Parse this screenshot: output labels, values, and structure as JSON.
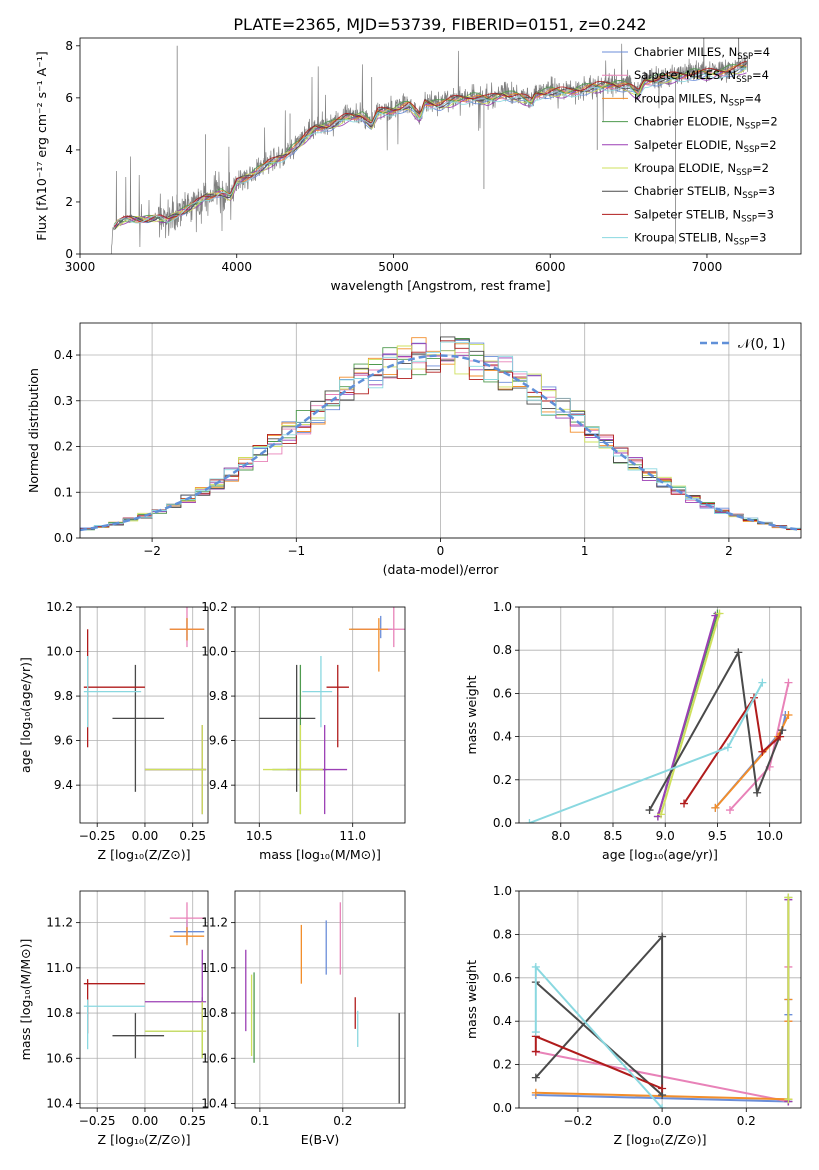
{
  "title": "PLATE=2365, MJD=53739, FIBERID=0151, z=0.242",
  "series": [
    {
      "key": "chab_miles",
      "label": "Chabrier MILES, N",
      "sub": "SSP",
      "suffix": "=4",
      "color": "#6b8ed9"
    },
    {
      "key": "salp_miles",
      "label": "Salpeter MILES, N",
      "sub": "SSP",
      "suffix": "=4",
      "color": "#e882b8"
    },
    {
      "key": "krou_miles",
      "label": "Kroupa MILES, N",
      "sub": "SSP",
      "suffix": "=4",
      "color": "#f28e2b"
    },
    {
      "key": "chab_elodie",
      "label": "Chabrier ELODIE, N",
      "sub": "SSP",
      "suffix": "=2",
      "color": "#4e9a4e"
    },
    {
      "key": "salp_elodie",
      "label": "Salpeter ELODIE, N",
      "sub": "SSP",
      "suffix": "=2",
      "color": "#9b3fb5"
    },
    {
      "key": "krou_elodie",
      "label": "Kroupa ELODIE, N",
      "sub": "SSP",
      "suffix": "=2",
      "color": "#cfe05c"
    },
    {
      "key": "chab_stelib",
      "label": "Chabrier STELIB, N",
      "sub": "SSP",
      "suffix": "=3",
      "color": "#4a4a4a"
    },
    {
      "key": "salp_stelib",
      "label": "Salpeter STELIB, N",
      "sub": "SSP",
      "suffix": "=3",
      "color": "#b01c1c"
    },
    {
      "key": "krou_stelib",
      "label": "Kroupa STELIB, N",
      "sub": "SSP",
      "suffix": "=3",
      "color": "#8ad8e0"
    }
  ],
  "chart_data": [
    {
      "id": "spectrum",
      "type": "line",
      "xlabel": "wavelength [Angstrom, rest frame]",
      "ylabel": "Flux [fλ10⁻¹⁷ erg cm⁻² s⁻¹ A⁻¹]",
      "xlim": [
        3000,
        7600
      ],
      "ylim": [
        0,
        8.3
      ],
      "xticks": [
        3000,
        4000,
        5000,
        6000,
        7000
      ],
      "yticks": [
        0,
        2,
        4,
        6,
        8
      ],
      "grid": false,
      "legend": "top-right",
      "continuum": [
        [
          3200,
          0
        ],
        [
          3210,
          1.0
        ],
        [
          3250,
          1.25
        ],
        [
          3300,
          1.35
        ],
        [
          3400,
          1.35
        ],
        [
          3500,
          1.4
        ],
        [
          3560,
          1.3
        ],
        [
          3600,
          1.5
        ],
        [
          3700,
          1.8
        ],
        [
          3800,
          2.2
        ],
        [
          3900,
          2.4
        ],
        [
          3960,
          2.2
        ],
        [
          4000,
          2.8
        ],
        [
          4100,
          3.1
        ],
        [
          4200,
          3.5
        ],
        [
          4300,
          3.8
        ],
        [
          4400,
          4.3
        ],
        [
          4500,
          4.9
        ],
        [
          4600,
          5.0
        ],
        [
          4700,
          5.3
        ],
        [
          4800,
          5.4
        ],
        [
          4860,
          5.0
        ],
        [
          4900,
          5.5
        ],
        [
          5000,
          5.6
        ],
        [
          5100,
          5.8
        ],
        [
          5170,
          5.3
        ],
        [
          5200,
          5.9
        ],
        [
          5300,
          5.8
        ],
        [
          5400,
          6.0
        ],
        [
          5500,
          6.1
        ],
        [
          5600,
          6.0
        ],
        [
          5700,
          6.2
        ],
        [
          5800,
          6.1
        ],
        [
          5890,
          5.9
        ],
        [
          5900,
          6.2
        ],
        [
          6000,
          6.3
        ],
        [
          6100,
          6.3
        ],
        [
          6200,
          6.4
        ],
        [
          6300,
          6.5
        ],
        [
          6400,
          6.6
        ],
        [
          6500,
          6.5
        ],
        [
          6563,
          6.2
        ],
        [
          6600,
          6.7
        ],
        [
          6700,
          6.8
        ],
        [
          6800,
          6.9
        ],
        [
          6900,
          7.0
        ],
        [
          7000,
          7.0
        ],
        [
          7100,
          7.1
        ],
        [
          7200,
          7.2
        ],
        [
          7260,
          7.3
        ]
      ]
    },
    {
      "id": "residuals",
      "type": "step",
      "xlabel": "(data-model)/error",
      "ylabel": "Normed distribution",
      "xlim": [
        -2.5,
        2.5
      ],
      "ylim": [
        0,
        0.47
      ],
      "xticks": [
        -2,
        -1,
        0,
        1,
        2
      ],
      "yticks": [
        0.0,
        0.1,
        0.2,
        0.3,
        0.4
      ],
      "grid": true,
      "legend": "top-right",
      "gauss_label": "𝒩(0, 1)"
    },
    {
      "id": "age_vs_Z",
      "type": "errorbar",
      "xlabel": "Z [log₁₀(Z/Z⊙)]",
      "ylabel": "age  [log₁₀(age/yr)]",
      "xlim": [
        -0.34,
        0.33
      ],
      "ylim": [
        9.23,
        10.2
      ],
      "xticks": [
        -0.25,
        0.0,
        0.25
      ],
      "yticks": [
        9.4,
        9.6,
        9.8,
        10.0,
        10.2
      ],
      "points": [
        {
          "s": "chab_miles",
          "x": 0.22,
          "y": 10.1,
          "xe": [
            0.09,
            0.09
          ],
          "ye": [
            0.05,
            0.05
          ]
        },
        {
          "s": "salp_miles",
          "x": 0.22,
          "y": 10.1,
          "xe": [
            0.09,
            0.09
          ],
          "ye": [
            0.08,
            0.1
          ]
        },
        {
          "s": "krou_miles",
          "x": 0.22,
          "y": 10.1,
          "xe": [
            0.09,
            0.09
          ],
          "ye": [
            0.05,
            0.05
          ]
        },
        {
          "s": "chab_elodie",
          "x": 0.3,
          "y": 9.47,
          "xe": [
            0.3,
            0.02
          ],
          "ye": [
            0.2,
            0.2
          ]
        },
        {
          "s": "salp_elodie",
          "x": 0.3,
          "y": 9.47,
          "xe": [
            0.3,
            0.02
          ],
          "ye": [
            0.2,
            0.2
          ]
        },
        {
          "s": "krou_elodie",
          "x": 0.3,
          "y": 9.47,
          "xe": [
            0.3,
            0.02
          ],
          "ye": [
            0.2,
            0.2
          ]
        },
        {
          "s": "chab_stelib",
          "x": -0.05,
          "y": 9.7,
          "xe": [
            0.12,
            0.15
          ],
          "ye": [
            0.33,
            0.24
          ]
        },
        {
          "s": "salp_stelib",
          "x": -0.3,
          "y": 9.84,
          "xe": [
            0.02,
            0.3
          ],
          "ye": [
            0.27,
            0.26
          ]
        },
        {
          "s": "krou_stelib",
          "x": -0.3,
          "y": 9.82,
          "xe": [
            0.02,
            0.28
          ],
          "ye": [
            0.16,
            0.16
          ]
        }
      ]
    },
    {
      "id": "age_vs_mass",
      "type": "errorbar",
      "xlabel": "mass [log₁₀(M/M⊙)]",
      "ylabel": "",
      "xlim": [
        10.37,
        11.28
      ],
      "ylim": [
        9.23,
        10.2
      ],
      "xticks": [
        10.5,
        11.0
      ],
      "yticks": [
        9.4,
        9.6,
        9.8,
        10.0,
        10.2
      ],
      "points": [
        {
          "s": "chab_miles",
          "x": 11.15,
          "y": 10.1,
          "xe": [
            0.16,
            0.06
          ],
          "ye": [
            0.04,
            0.06
          ]
        },
        {
          "s": "salp_miles",
          "x": 11.22,
          "y": 10.1,
          "xe": [
            0.2,
            0.06
          ],
          "ye": [
            0.08,
            0.1
          ]
        },
        {
          "s": "krou_miles",
          "x": 11.14,
          "y": 10.1,
          "xe": [
            0.16,
            0.05
          ],
          "ye": [
            0.19,
            0.05
          ]
        },
        {
          "s": "chab_elodie",
          "x": 10.72,
          "y": 9.47,
          "xe": [
            0.15,
            0.14
          ],
          "ye": [
            0.2,
            0.47
          ]
        },
        {
          "s": "salp_elodie",
          "x": 10.85,
          "y": 9.47,
          "xe": [
            0.2,
            0.12
          ],
          "ye": [
            0.2,
            0.2
          ]
        },
        {
          "s": "krou_elodie",
          "x": 10.72,
          "y": 9.47,
          "xe": [
            0.2,
            0.12
          ],
          "ye": [
            0.2,
            0.2
          ]
        },
        {
          "s": "chab_stelib",
          "x": 10.7,
          "y": 9.7,
          "xe": [
            0.2,
            0.1
          ],
          "ye": [
            0.33,
            0.24
          ]
        },
        {
          "s": "salp_stelib",
          "x": 10.92,
          "y": 9.84,
          "xe": [
            0.06,
            0.06
          ],
          "ye": [
            0.27,
            0.1
          ]
        },
        {
          "s": "krou_stelib",
          "x": 10.83,
          "y": 9.82,
          "xe": [
            0.1,
            0.06
          ],
          "ye": [
            0.16,
            0.16
          ]
        }
      ]
    },
    {
      "id": "weight_vs_age",
      "type": "line",
      "xlabel": "age  [log₁₀(age/yr)]",
      "ylabel": "mass weight",
      "xlim": [
        7.6,
        10.3
      ],
      "ylim": [
        0,
        1
      ],
      "xticks": [
        8.0,
        8.5,
        9.0,
        9.5,
        10.0
      ],
      "yticks": [
        0.0,
        0.2,
        0.4,
        0.6,
        0.8,
        1.0
      ],
      "lines": [
        {
          "s": "chab_miles",
          "x": [
            9.48,
            10.12,
            10.15
          ],
          "y": [
            0.07,
            0.43,
            0.5
          ]
        },
        {
          "s": "salp_miles",
          "x": [
            9.62,
            10.0,
            10.18
          ],
          "y": [
            0.06,
            0.26,
            0.65
          ]
        },
        {
          "s": "krou_miles",
          "x": [
            9.48,
            10.08,
            10.18
          ],
          "y": [
            0.07,
            0.4,
            0.5
          ]
        },
        {
          "s": "chab_elodie",
          "x": [
            8.93,
            9.5
          ],
          "y": [
            0.03,
            0.97
          ]
        },
        {
          "s": "salp_elodie",
          "x": [
            8.93,
            9.48
          ],
          "y": [
            0.03,
            0.96
          ]
        },
        {
          "s": "krou_elodie",
          "x": [
            8.96,
            9.52
          ],
          "y": [
            0.04,
            0.97
          ]
        },
        {
          "s": "chab_stelib",
          "x": [
            8.85,
            9.7,
            9.88,
            10.12
          ],
          "y": [
            0.06,
            0.79,
            0.14,
            0.43
          ]
        },
        {
          "s": "salp_stelib",
          "x": [
            9.18,
            9.85,
            9.93,
            10.1
          ],
          "y": [
            0.09,
            0.58,
            0.33,
            0.4
          ]
        },
        {
          "s": "krou_stelib",
          "x": [
            7.7,
            9.6,
            9.93
          ],
          "y": [
            0.0,
            0.35,
            0.65
          ]
        }
      ]
    },
    {
      "id": "mass_vs_Z",
      "type": "errorbar",
      "xlabel": "Z [log₁₀(Z/Z⊙)]",
      "ylabel": "mass [log₁₀(M/M⊙)]",
      "xlim": [
        -0.34,
        0.33
      ],
      "ylim": [
        10.38,
        11.34
      ],
      "xticks": [
        -0.25,
        0.0,
        0.25
      ],
      "yticks": [
        10.4,
        10.6,
        10.8,
        11.0,
        11.2
      ],
      "points": [
        {
          "s": "chab_miles",
          "x": 0.22,
          "y": 11.16,
          "xe": [
            0.07,
            0.09
          ],
          "ye": [
            0.05,
            0.05
          ]
        },
        {
          "s": "salp_miles",
          "x": 0.22,
          "y": 11.22,
          "xe": [
            0.09,
            0.09
          ],
          "ye": [
            0.1,
            0.07
          ]
        },
        {
          "s": "krou_miles",
          "x": 0.22,
          "y": 11.14,
          "xe": [
            0.09,
            0.09
          ],
          "ye": [
            0.04,
            0.04
          ]
        },
        {
          "s": "chab_elodie",
          "x": 0.3,
          "y": 10.72,
          "xe": [
            0.3,
            0.02
          ],
          "ye": [
            0.12,
            0.15
          ]
        },
        {
          "s": "salp_elodie",
          "x": 0.3,
          "y": 10.85,
          "xe": [
            0.3,
            0.02
          ],
          "ye": [
            0.12,
            0.23
          ]
        },
        {
          "s": "krou_elodie",
          "x": 0.3,
          "y": 10.72,
          "xe": [
            0.3,
            0.02
          ],
          "ye": [
            0.12,
            0.13
          ]
        },
        {
          "s": "chab_stelib",
          "x": -0.05,
          "y": 10.7,
          "xe": [
            0.12,
            0.15
          ],
          "ye": [
            0.1,
            0.1
          ]
        },
        {
          "s": "salp_stelib",
          "x": -0.3,
          "y": 10.93,
          "xe": [
            0.02,
            0.3
          ],
          "ye": [
            0.22,
            0.02
          ]
        },
        {
          "s": "krou_stelib",
          "x": -0.3,
          "y": 10.83,
          "xe": [
            0.02,
            0.3
          ],
          "ye": [
            0.19,
            0.03
          ]
        }
      ]
    },
    {
      "id": "mass_vs_EBV",
      "type": "errorbar",
      "xlabel": "E(B-V)",
      "ylabel": "",
      "xlim": [
        0.07,
        0.275
      ],
      "ylim": [
        10.38,
        11.34
      ],
      "xticks": [
        0.1,
        0.2
      ],
      "yticks": [
        10.4,
        10.6,
        10.8,
        11.0,
        11.2
      ],
      "points": [
        {
          "s": "chab_miles",
          "x": 0.18,
          "y": 11.09,
          "xe": [
            0,
            0
          ],
          "ye": [
            0.12,
            0.12
          ]
        },
        {
          "s": "salp_miles",
          "x": 0.197,
          "y": 11.13,
          "xe": [
            0,
            0
          ],
          "ye": [
            0.16,
            0.16
          ]
        },
        {
          "s": "krou_miles",
          "x": 0.15,
          "y": 11.06,
          "xe": [
            0,
            0
          ],
          "ye": [
            0.13,
            0.13
          ]
        },
        {
          "s": "chab_elodie",
          "x": 0.093,
          "y": 10.78,
          "xe": [
            0,
            0
          ],
          "ye": [
            0.2,
            0.2
          ]
        },
        {
          "s": "salp_elodie",
          "x": 0.083,
          "y": 10.9,
          "xe": [
            0,
            0
          ],
          "ye": [
            0.18,
            0.18
          ]
        },
        {
          "s": "krou_elodie",
          "x": 0.09,
          "y": 10.79,
          "xe": [
            0,
            0
          ],
          "ye": [
            0.18,
            0.18
          ]
        },
        {
          "s": "chab_stelib",
          "x": 0.268,
          "y": 10.6,
          "xe": [
            0,
            0
          ],
          "ye": [
            0.2,
            0.2
          ]
        },
        {
          "s": "salp_stelib",
          "x": 0.215,
          "y": 10.8,
          "xe": [
            0,
            0
          ],
          "ye": [
            0.07,
            0.07
          ]
        },
        {
          "s": "krou_stelib",
          "x": 0.218,
          "y": 10.73,
          "xe": [
            0,
            0
          ],
          "ye": [
            0.08,
            0.08
          ]
        }
      ]
    },
    {
      "id": "weight_vs_Z",
      "type": "line",
      "xlabel": "Z [log₁₀(Z/Z⊙)]",
      "ylabel": "mass weight",
      "xlim": [
        -0.34,
        0.33
      ],
      "ylim": [
        0,
        1
      ],
      "xticks": [
        -0.2,
        0.0,
        0.2
      ],
      "yticks": [
        0.0,
        0.2,
        0.4,
        0.6,
        0.8,
        1.0
      ],
      "lines": [
        {
          "s": "chab_miles",
          "x": [
            -0.3,
            0.3,
            0.3,
            0.3
          ],
          "y": [
            0.06,
            0.03,
            0.43,
            0.5
          ]
        },
        {
          "s": "salp_miles",
          "x": [
            -0.3,
            0.3,
            0.3,
            0.3
          ],
          "y": [
            0.26,
            0.03,
            0.4,
            0.65
          ]
        },
        {
          "s": "krou_miles",
          "x": [
            -0.3,
            0.3,
            0.3,
            0.3
          ],
          "y": [
            0.07,
            0.04,
            0.4,
            0.5
          ]
        },
        {
          "s": "chab_elodie",
          "x": [
            0.3,
            0.3
          ],
          "y": [
            0.03,
            0.97
          ]
        },
        {
          "s": "salp_elodie",
          "x": [
            0.3,
            0.3
          ],
          "y": [
            0.03,
            0.96
          ]
        },
        {
          "s": "krou_elodie",
          "x": [
            0.3,
            0.3
          ],
          "y": [
            0.04,
            0.97
          ]
        },
        {
          "s": "chab_stelib",
          "x": [
            -0.3,
            0.0,
            0.0,
            -0.3
          ],
          "y": [
            0.14,
            0.79,
            0.06,
            0.58
          ]
        },
        {
          "s": "salp_stelib",
          "x": [
            0.0,
            -0.3,
            -0.3
          ],
          "y": [
            0.09,
            0.33,
            0.26
          ]
        },
        {
          "s": "krou_stelib",
          "x": [
            0.0,
            -0.3,
            -0.3
          ],
          "y": [
            0.0,
            0.65,
            0.35
          ]
        }
      ]
    }
  ]
}
